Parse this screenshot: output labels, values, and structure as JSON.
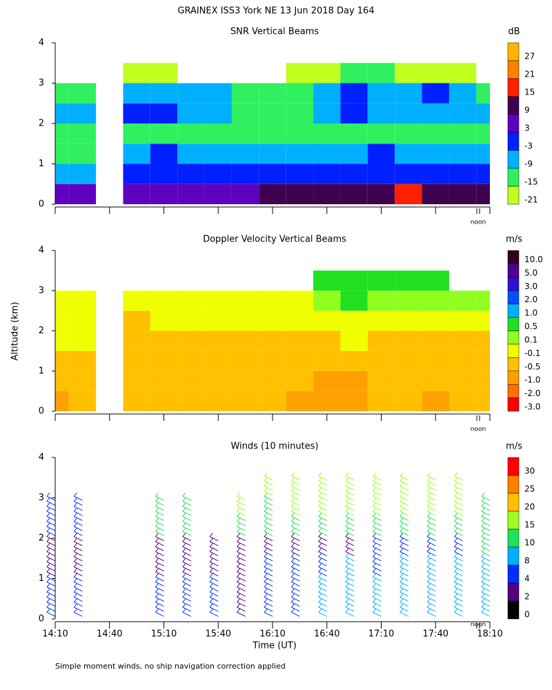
{
  "title": "GRAINEX ISS3 York NE  13 Jun 2018 Day 164",
  "ylabel": "Altitude (km)",
  "xlabel": "Time (UT)",
  "note": "Simple moment winds, no ship navigation correction applied",
  "xlim": [
    "14:10",
    "18:10"
  ],
  "xticks": [
    "14:10",
    "14:40",
    "15:10",
    "15:40",
    "16:10",
    "16:40",
    "17:10",
    "17:40",
    "18:10"
  ],
  "chart_data": [
    {
      "type": "heatmap",
      "title": "SNR Vertical Beams",
      "unit": "dB",
      "noon": "noon",
      "x": [
        "14:10",
        "14:25",
        "14:40",
        "14:55",
        "15:10",
        "15:25",
        "15:40",
        "15:55",
        "16:10",
        "16:25",
        "16:40",
        "16:55",
        "17:10",
        "17:25",
        "17:40",
        "17:55",
        "18:10"
      ],
      "y": [
        0.25,
        0.75,
        1.25,
        1.75,
        2.25,
        2.75,
        3.25,
        3.75
      ],
      "ylim": [
        0,
        4
      ],
      "yticks": [
        0,
        1,
        2,
        3,
        4
      ],
      "colorbar": {
        "ticks": [
          27,
          21,
          15,
          9,
          3,
          -3,
          -9,
          -15,
          -21
        ],
        "colors": [
          "#ffb400",
          "#ff8000",
          "#ff2000",
          "#400050",
          "#6000c0",
          "#0020ff",
          "#00b0ff",
          "#30f060",
          "#c0ff20"
        ]
      },
      "values": [
        [
          3,
          3,
          null,
          3,
          3,
          3,
          3,
          3,
          9,
          9,
          9,
          9,
          9,
          15,
          9,
          9,
          9
        ],
        [
          -9,
          -9,
          null,
          -3,
          -3,
          -3,
          -3,
          -3,
          -3,
          -3,
          -3,
          -3,
          -3,
          -3,
          -3,
          -3,
          -3
        ],
        [
          -15,
          -15,
          null,
          -9,
          -3,
          -9,
          -9,
          -9,
          -9,
          -9,
          -9,
          -9,
          -3,
          -9,
          -9,
          -9,
          -9
        ],
        [
          -15,
          -15,
          null,
          -15,
          -15,
          -15,
          -15,
          -15,
          -15,
          -15,
          -15,
          -15,
          -15,
          -15,
          -15,
          -15,
          -15
        ],
        [
          -9,
          -9,
          null,
          -3,
          -3,
          -9,
          -9,
          -15,
          -15,
          -15,
          -9,
          -3,
          -9,
          -9,
          -9,
          -9,
          -9
        ],
        [
          -15,
          -15,
          null,
          -9,
          -9,
          -9,
          -9,
          -15,
          -15,
          -15,
          -9,
          -3,
          -9,
          -9,
          -3,
          -9,
          -15
        ],
        [
          null,
          null,
          null,
          -21,
          -21,
          null,
          null,
          null,
          null,
          -21,
          -21,
          -15,
          -15,
          -21,
          -21,
          -21,
          null
        ],
        [
          null,
          null,
          null,
          null,
          null,
          null,
          null,
          null,
          null,
          null,
          null,
          null,
          null,
          null,
          null,
          null,
          null
        ]
      ]
    },
    {
      "type": "heatmap",
      "title": "Doppler Velocity Vertical Beams",
      "unit": "m/s",
      "noon": "noon",
      "x": [
        "14:10",
        "14:25",
        "14:40",
        "14:55",
        "15:10",
        "15:25",
        "15:40",
        "15:55",
        "16:10",
        "16:25",
        "16:40",
        "16:55",
        "17:10",
        "17:25",
        "17:40",
        "17:55",
        "18:10"
      ],
      "y": [
        0.25,
        0.75,
        1.25,
        1.75,
        2.25,
        2.75,
        3.25,
        3.75
      ],
      "ylim": [
        0,
        4
      ],
      "yticks": [
        0,
        1,
        2,
        3,
        4
      ],
      "colorbar": {
        "ticks": [
          {
            "value": 10,
            "label": "10.0"
          },
          {
            "value": 5,
            "label": "5.0"
          },
          {
            "value": 3,
            "label": "3.0"
          },
          {
            "value": 2,
            "label": "2.0"
          },
          {
            "value": 1,
            "label": "1.0"
          },
          0.5,
          0.1,
          -0.1,
          -0.5,
          {
            "value": -1,
            "label": "-1.0"
          },
          {
            "value": -2,
            "label": "-2.0"
          },
          {
            "value": -3,
            "label": "-3.0"
          }
        ],
        "colors": [
          "#300020",
          "#500090",
          "#3010d0",
          "#0050ff",
          "#00b0ff",
          "#20e020",
          "#90ff20",
          "#f0ff00",
          "#ffc000",
          "#ffa000",
          "#ff7000",
          "#ff0000"
        ]
      },
      "values": [
        [
          -1,
          -0.5,
          null,
          -0.5,
          -0.5,
          -0.5,
          -0.5,
          -0.5,
          -0.5,
          -1,
          -1,
          -1,
          -0.5,
          -0.5,
          -1,
          -0.5,
          -0.5
        ],
        [
          -0.5,
          -0.5,
          null,
          -0.5,
          -0.5,
          -0.5,
          -0.5,
          -0.5,
          -0.5,
          -0.5,
          -1,
          -1,
          -0.5,
          -0.5,
          -0.5,
          -0.5,
          -0.5
        ],
        [
          -0.5,
          -0.5,
          null,
          -0.5,
          -0.5,
          -0.5,
          -0.5,
          -0.5,
          -0.5,
          -0.5,
          -0.5,
          -0.5,
          -0.5,
          -0.5,
          -0.5,
          -0.5,
          -0.5
        ],
        [
          -0.1,
          -0.1,
          null,
          -0.5,
          -0.5,
          -0.5,
          -0.5,
          -0.5,
          -0.5,
          -0.5,
          -0.5,
          -0.1,
          -0.5,
          -0.5,
          -0.5,
          -0.5,
          -0.5
        ],
        [
          -0.1,
          -0.1,
          null,
          -0.5,
          -0.1,
          -0.1,
          -0.1,
          -0.1,
          -0.1,
          -0.1,
          -0.1,
          -0.1,
          -0.1,
          -0.1,
          -0.1,
          -0.1,
          -0.1
        ],
        [
          -0.1,
          -0.1,
          null,
          -0.1,
          -0.1,
          -0.1,
          -0.1,
          -0.1,
          -0.1,
          -0.1,
          0.1,
          0.5,
          0.1,
          0.1,
          0.1,
          0.1,
          0.1
        ],
        [
          null,
          null,
          null,
          null,
          null,
          null,
          null,
          null,
          null,
          null,
          0.5,
          0.5,
          0.5,
          0.5,
          0.5,
          null,
          null
        ],
        [
          null,
          null,
          null,
          null,
          null,
          null,
          null,
          null,
          null,
          null,
          null,
          null,
          null,
          null,
          null,
          null,
          null
        ]
      ]
    },
    {
      "type": "barbs",
      "title": "Winds (10 minutes)",
      "unit": "m/s",
      "noon": "noon",
      "x": [
        "14:10",
        "14:25",
        "14:40",
        "14:55",
        "15:10",
        "15:25",
        "15:40",
        "15:55",
        "16:10",
        "16:25",
        "16:40",
        "16:55",
        "17:10",
        "17:25",
        "17:40",
        "17:55",
        "18:10"
      ],
      "y": [
        0.25,
        0.75,
        1.25,
        1.75,
        2.25,
        2.75,
        3.25,
        3.75
      ],
      "ylim": [
        0,
        4
      ],
      "yticks": [
        0,
        1,
        2,
        3,
        4
      ],
      "colorbar": {
        "ticks": [
          30,
          25,
          20,
          15,
          10,
          8,
          4,
          2,
          0
        ],
        "colors": [
          "#ff0000",
          "#ff8000",
          "#ffc000",
          "#a0ff20",
          "#20e060",
          "#00b0ff",
          "#0030ff",
          "#500080",
          "#000000"
        ]
      },
      "values": [
        [
          5,
          5,
          null,
          null,
          6,
          6,
          5,
          3,
          5,
          6,
          8,
          8,
          9,
          9,
          9,
          9,
          9
        ],
        [
          6,
          6,
          null,
          null,
          5,
          6,
          5,
          3,
          6,
          6,
          9,
          9,
          9,
          9,
          9,
          9,
          9
        ],
        [
          3,
          3,
          null,
          null,
          3,
          3,
          3,
          2,
          5,
          5,
          6,
          8,
          6,
          8,
          8,
          8,
          9
        ],
        [
          2,
          2,
          null,
          null,
          2,
          2,
          2,
          2,
          2,
          2,
          3,
          3,
          5,
          5,
          6,
          6,
          12
        ],
        [
          6,
          6,
          null,
          null,
          12,
          12,
          null,
          12,
          12,
          12,
          12,
          12,
          14,
          14,
          14,
          14,
          12
        ],
        [
          6,
          6,
          null,
          null,
          12,
          14,
          null,
          16,
          14,
          15,
          16,
          16,
          16,
          16,
          16,
          16,
          14
        ],
        [
          null,
          null,
          null,
          null,
          null,
          null,
          null,
          null,
          18,
          18,
          18,
          18,
          18,
          18,
          18,
          18,
          null
        ],
        [
          null,
          null,
          null,
          null,
          null,
          null,
          null,
          null,
          null,
          null,
          null,
          null,
          null,
          null,
          null,
          null,
          null
        ]
      ]
    }
  ]
}
